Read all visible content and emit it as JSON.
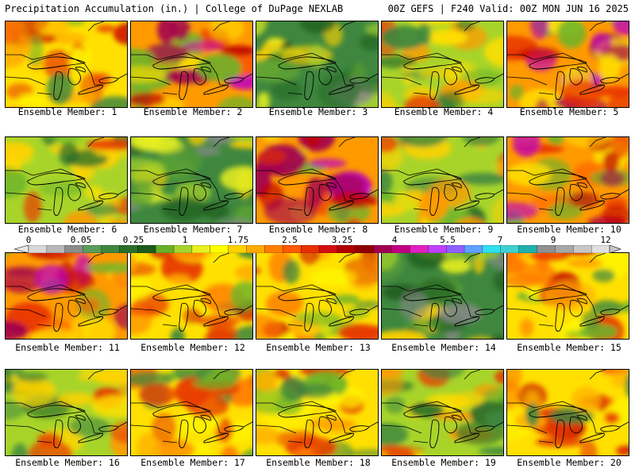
{
  "header": {
    "left": "Precipitation Accumulation (in.) | College of DuPage NEXLAB",
    "right": "00Z GEFS | F240 Valid: 00Z MON JUN 16 2025"
  },
  "panels": [
    {
      "label": "Ensemble Member: 1",
      "theme": "yellow-red"
    },
    {
      "label": "Ensemble Member: 2",
      "theme": "red-wet"
    },
    {
      "label": "Ensemble Member: 3",
      "theme": "green-dry"
    },
    {
      "label": "Ensemble Member: 4",
      "theme": "mixed"
    },
    {
      "label": "Ensemble Member: 5",
      "theme": "red-wet"
    },
    {
      "label": "Ensemble Member: 6",
      "theme": "mixed"
    },
    {
      "label": "Ensemble Member: 7",
      "theme": "green-dry"
    },
    {
      "label": "Ensemble Member: 8",
      "theme": "red-wet"
    },
    {
      "label": "Ensemble Member: 9",
      "theme": "mixed"
    },
    {
      "label": "Ensemble Member: 10",
      "theme": "red-wet"
    },
    {
      "label": "Ensemble Member: 11",
      "theme": "red-wet"
    },
    {
      "label": "Ensemble Member: 12",
      "theme": "yellow-red"
    },
    {
      "label": "Ensemble Member: 13",
      "theme": "yellow-red"
    },
    {
      "label": "Ensemble Member: 14",
      "theme": "green-dry"
    },
    {
      "label": "Ensemble Member: 15",
      "theme": "yellow-red"
    },
    {
      "label": "Ensemble Member: 16",
      "theme": "mixed"
    },
    {
      "label": "Ensemble Member: 17",
      "theme": "yellow-red"
    },
    {
      "label": "Ensemble Member: 18",
      "theme": "yellow-red"
    },
    {
      "label": "Ensemble Member: 19",
      "theme": "mixed"
    },
    {
      "label": "Ensemble Member: 20",
      "theme": "yellow-red"
    }
  ],
  "legend": {
    "ticks": [
      "0",
      "0.05",
      "0.25",
      "1",
      "1.75",
      "2.5",
      "3.25",
      "4",
      "5.5",
      "7",
      "9",
      "12"
    ],
    "colors": [
      "#d8d8d8",
      "#b8b8b8",
      "#8c8c8c",
      "#5a9c5a",
      "#3f873f",
      "#2a6e2a",
      "#1e5a1e",
      "#68b02a",
      "#a8d42a",
      "#e8f020",
      "#ffff00",
      "#ffd200",
      "#ffaa00",
      "#ff7e00",
      "#ff5a00",
      "#e83000",
      "#d01010",
      "#b00000",
      "#900000",
      "#a00050",
      "#c00080",
      "#e020c0",
      "#c040ff",
      "#9060ff",
      "#60a0ff",
      "#30e0f0",
      "#40d0d0",
      "#20b0b0",
      "#909090",
      "#a8a8a8",
      "#c8c8c8",
      "#e0e0e0"
    ]
  }
}
